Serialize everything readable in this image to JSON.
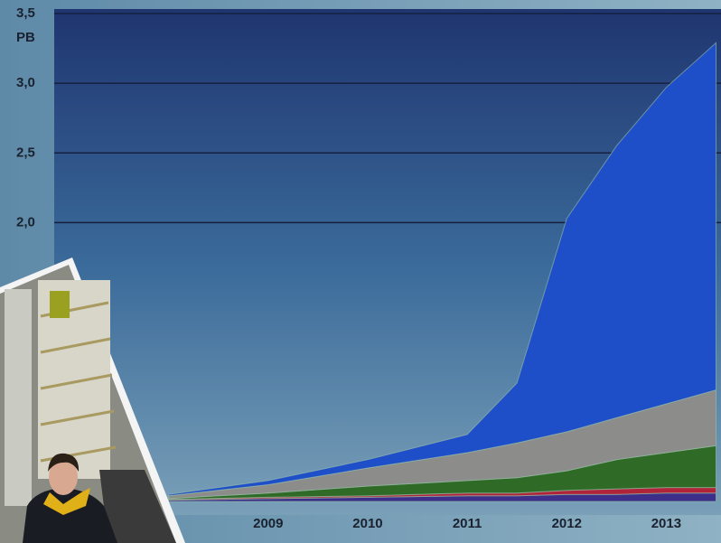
{
  "chart_data": {
    "type": "stacked_area",
    "y_unit": "PB",
    "x": [
      2008,
      2009,
      2010,
      2011,
      2011.5,
      2012,
      2012.5,
      2013,
      2013.5
    ],
    "series": [
      {
        "color": "#3b2f8a",
        "values": [
          0.01,
          0.02,
          0.03,
          0.04,
          0.04,
          0.05,
          0.05,
          0.06,
          0.06
        ]
      },
      {
        "color": "#b0243a",
        "values": [
          0.005,
          0.01,
          0.01,
          0.02,
          0.02,
          0.03,
          0.04,
          0.04,
          0.04
        ]
      },
      {
        "color": "#2f6a26",
        "values": [
          0.005,
          0.03,
          0.07,
          0.09,
          0.11,
          0.14,
          0.21,
          0.25,
          0.3
        ]
      },
      {
        "color": "#8c8c8a",
        "values": [
          0.02,
          0.06,
          0.13,
          0.2,
          0.25,
          0.28,
          0.3,
          0.35,
          0.4
        ]
      },
      {
        "color": "#1e4fc8",
        "values": [
          0.01,
          0.03,
          0.06,
          0.13,
          0.43,
          1.53,
          1.95,
          2.27,
          2.49
        ]
      }
    ],
    "xlim": [
      2006.85,
      2013.55
    ],
    "xticks": [
      2009,
      2010,
      2011,
      2012,
      2013
    ],
    "ylim": [
      0,
      3.5
    ],
    "yticks": [
      {
        "value": 2.0,
        "label": "2,0"
      },
      {
        "value": 2.5,
        "label": "2,5"
      },
      {
        "value": 3.0,
        "label": "3,0"
      },
      {
        "value": 3.5,
        "label": "3,5"
      }
    ],
    "grid": true
  }
}
